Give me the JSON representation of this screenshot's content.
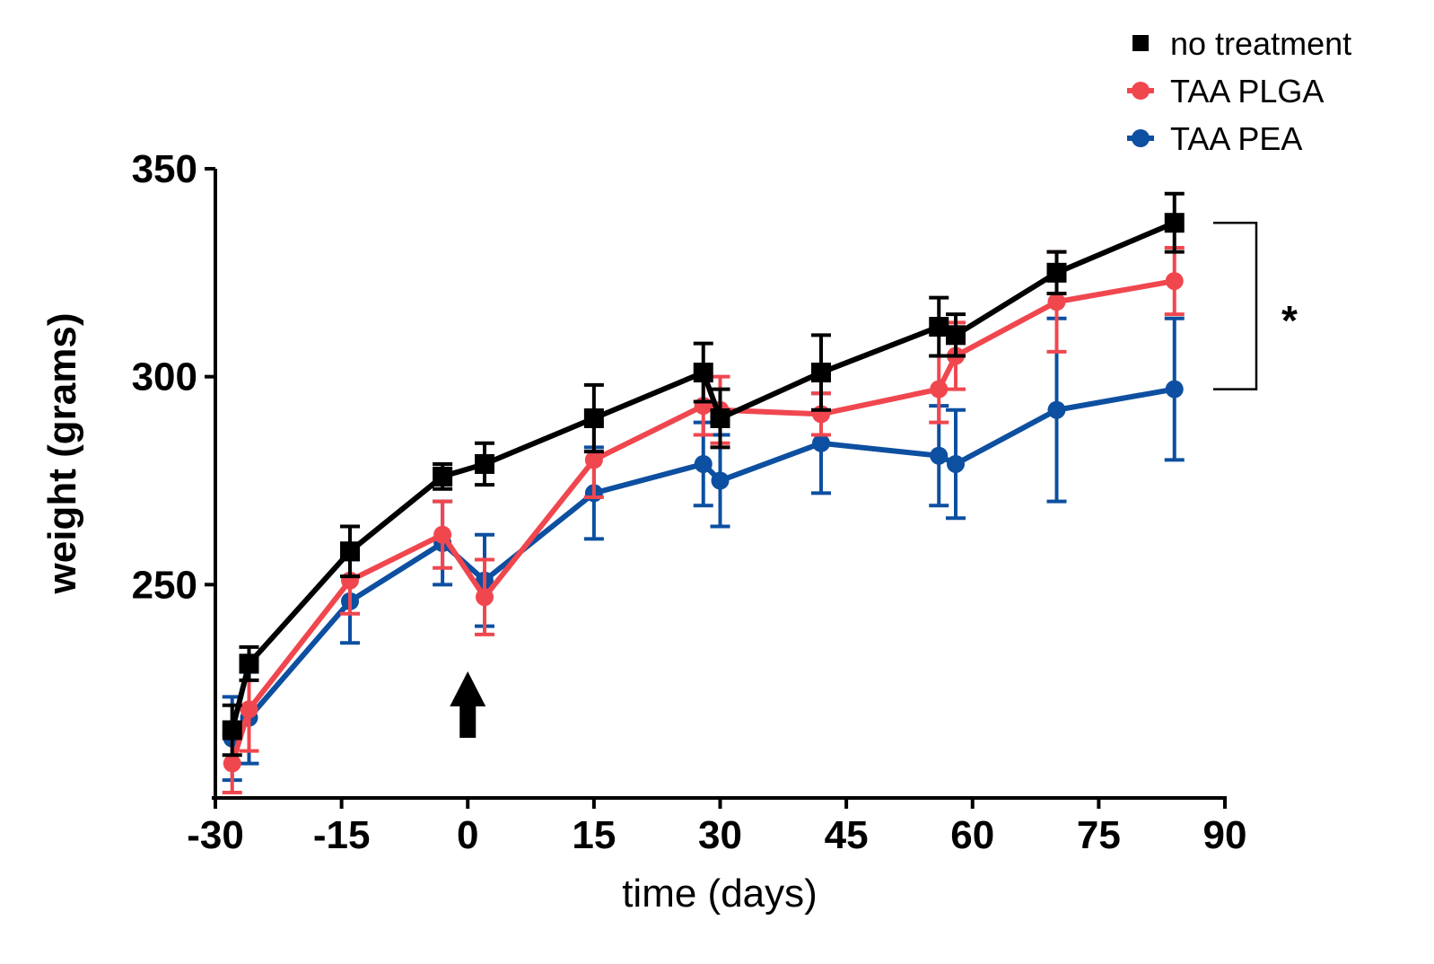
{
  "chart_data": {
    "type": "line",
    "title": "",
    "xlabel": "time (days)",
    "ylabel": "weight  (grams)",
    "xlim": [
      -30,
      90
    ],
    "ylim": [
      200,
      350
    ],
    "xticks": [
      -30,
      -15,
      0,
      15,
      30,
      45,
      60,
      75,
      90
    ],
    "xtick_labels": [
      "-30",
      "-15",
      "0",
      "15",
      "30",
      "45",
      "60",
      "75",
      "90"
    ],
    "yticks": [
      250,
      300,
      350
    ],
    "ytick_labels": [
      "250",
      "300",
      "350"
    ],
    "grid": false,
    "legend_position": "top-right",
    "series": [
      {
        "name": "no treatment",
        "color": "#000000",
        "marker": "square",
        "x": [
          -28,
          -26,
          -14,
          -3,
          2,
          15,
          28,
          30,
          42,
          56,
          58,
          70,
          84
        ],
        "y": [
          215,
          231,
          258,
          276,
          279,
          290,
          301,
          290,
          301,
          312,
          310,
          325,
          337
        ],
        "err": [
          6,
          4,
          6,
          3,
          5,
          8,
          7,
          7,
          9,
          7,
          5,
          5,
          7
        ]
      },
      {
        "name": "TAA PLGA",
        "color": "#f0474f",
        "marker": "circle",
        "x": [
          -28,
          -26,
          -14,
          -3,
          2,
          15,
          28,
          30,
          42,
          56,
          58,
          70,
          84
        ],
        "y": [
          207,
          220,
          251,
          262,
          247,
          280,
          293,
          292,
          291,
          297,
          305,
          318,
          323
        ],
        "err": [
          7,
          10,
          8,
          8,
          9,
          9,
          7,
          8,
          5,
          8,
          8,
          12,
          8
        ]
      },
      {
        "name": "TAA PEA",
        "color": "#0d4fa0",
        "marker": "circle",
        "x": [
          -28,
          -26,
          -14,
          -3,
          2,
          15,
          28,
          30,
          42,
          56,
          58,
          70,
          84
        ],
        "y": [
          213,
          218,
          246,
          260,
          251,
          272,
          279,
          275,
          284,
          281,
          279,
          292,
          297
        ],
        "err": [
          10,
          11,
          10,
          10,
          11,
          11,
          10,
          11,
          12,
          12,
          13,
          22,
          17
        ]
      }
    ],
    "annotations": [
      {
        "type": "arrow",
        "label": "",
        "x": 0,
        "direction": "up"
      },
      {
        "type": "significance-bracket",
        "label": "*",
        "y_from": 337,
        "y_to": 297
      }
    ]
  }
}
